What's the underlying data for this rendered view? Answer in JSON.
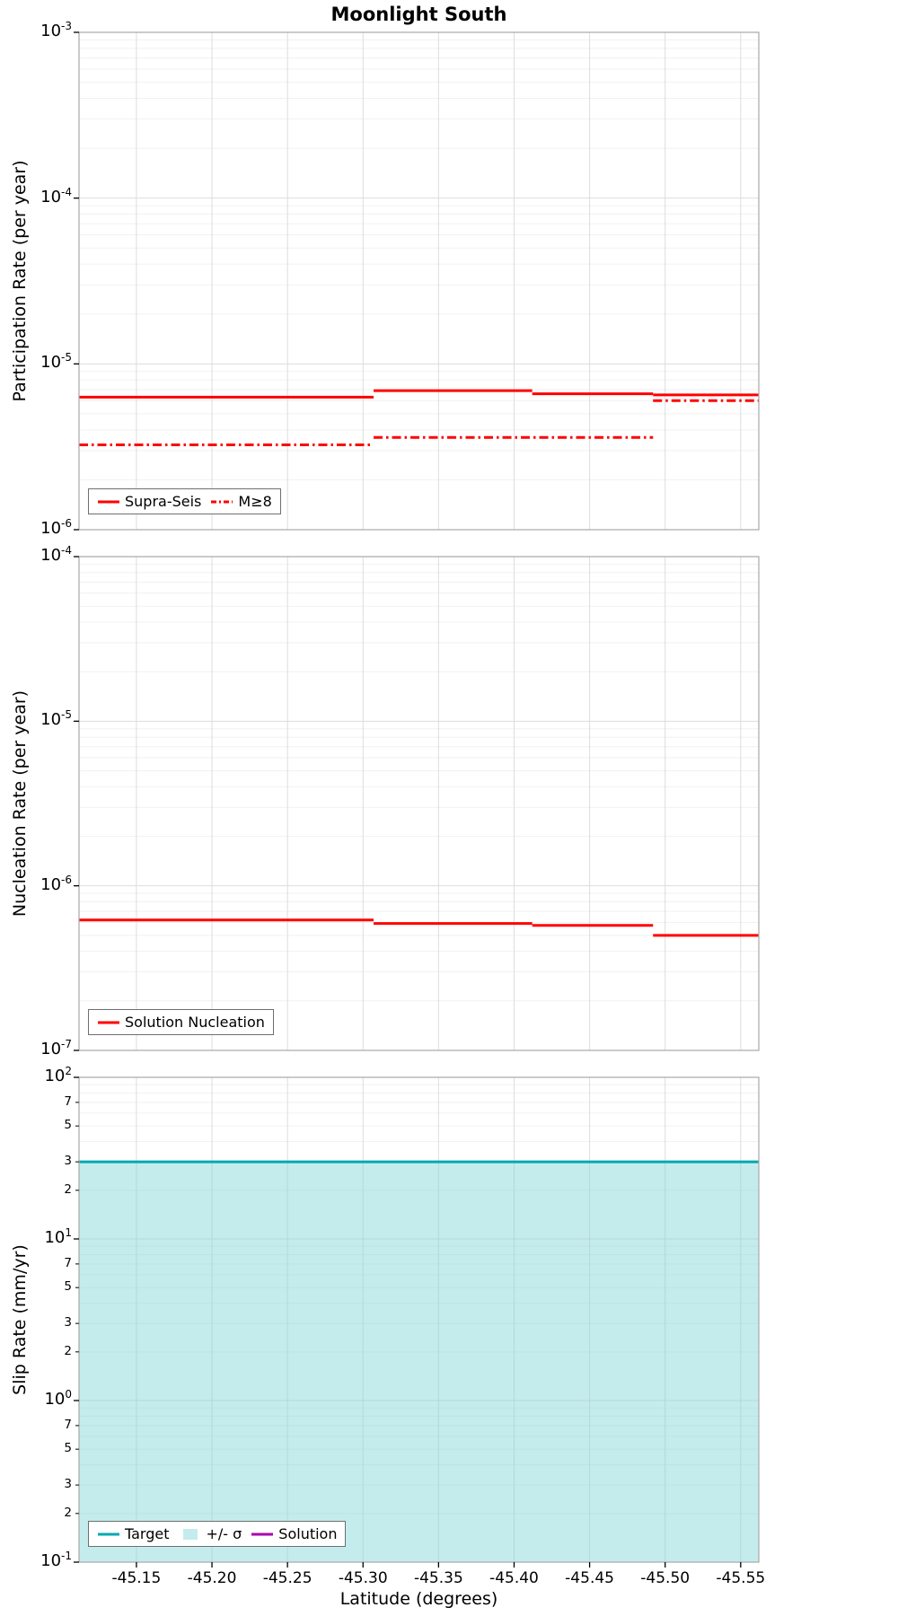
{
  "title": "Moonlight South",
  "xlabel": "Latitude (degrees)",
  "x_range": [
    -45.112,
    -45.562
  ],
  "x_tick_labels": [
    "-45.15",
    "-45.20",
    "-45.25",
    "-45.30",
    "-45.35",
    "-45.40",
    "-45.45",
    "-45.50",
    "-45.55"
  ],
  "colors": {
    "series_red": "#ff0000",
    "target_teal": "#00a8b0",
    "solution_magenta": "#aa00aa",
    "sigma_band": "#7fd4d8",
    "grid_major": "#dddddd",
    "grid_minor": "#f1f1f1",
    "panel_border": "#a8a8a8",
    "text": "#000000"
  },
  "chart_data": [
    {
      "name": "participation",
      "type": "line",
      "ylabel": "Participation Rate (per year)",
      "y_log_range": [
        -6,
        -3
      ],
      "x_reversed": true,
      "series": [
        {
          "name": "Supra-Seis",
          "style": "solid",
          "color": "series_red",
          "segments": [
            {
              "x0": -45.112,
              "x1": -45.307,
              "rate": 6.3e-06
            },
            {
              "x0": -45.307,
              "x1": -45.412,
              "rate": 6.9e-06
            },
            {
              "x0": -45.412,
              "x1": -45.492,
              "rate": 6.6e-06
            },
            {
              "x0": -45.492,
              "x1": -45.562,
              "rate": 6.5e-06
            }
          ]
        },
        {
          "name": "M≥8",
          "style": "dashdot",
          "color": "series_red",
          "segments": [
            {
              "x0": -45.112,
              "x1": -45.307,
              "rate": 3.25e-06
            },
            {
              "x0": -45.307,
              "x1": -45.492,
              "rate": 3.6e-06
            },
            {
              "x0": -45.492,
              "x1": -45.562,
              "rate": 6e-06
            }
          ]
        }
      ],
      "legend": [
        {
          "label": "Supra-Seis",
          "sample": "solid",
          "color": "series_red"
        },
        {
          "label": "M≥8",
          "sample": "dashdot",
          "color": "series_red"
        }
      ]
    },
    {
      "name": "nucleation",
      "type": "line",
      "ylabel": "Nucleation Rate (per year)",
      "y_log_range": [
        -7,
        -4
      ],
      "x_reversed": true,
      "series": [
        {
          "name": "Solution Nucleation",
          "style": "solid",
          "color": "series_red",
          "segments": [
            {
              "x0": -45.112,
              "x1": -45.307,
              "rate": 6.2e-07
            },
            {
              "x0": -45.307,
              "x1": -45.412,
              "rate": 5.9e-07
            },
            {
              "x0": -45.412,
              "x1": -45.492,
              "rate": 5.75e-07
            },
            {
              "x0": -45.492,
              "x1": -45.562,
              "rate": 5e-07
            }
          ]
        }
      ],
      "legend": [
        {
          "label": "Solution Nucleation",
          "sample": "solid",
          "color": "series_red"
        }
      ]
    },
    {
      "name": "slip-rate",
      "type": "area",
      "ylabel": "Slip Rate (mm/yr)",
      "y_log_range": [
        -1,
        2
      ],
      "x_reversed": true,
      "minor_tick_labels": [
        7,
        5,
        3,
        2
      ],
      "band": {
        "label": "+/- σ",
        "low": 0.1,
        "high": 30,
        "x0": -45.112,
        "x1": -45.562,
        "color": "sigma_band"
      },
      "series": [
        {
          "name": "Target",
          "style": "solid",
          "color": "target_teal",
          "segments": [
            {
              "x0": -45.112,
              "x1": -45.562,
              "rate": 30
            }
          ]
        }
      ],
      "legend": [
        {
          "label": "Target",
          "sample": "solid",
          "color": "target_teal"
        },
        {
          "label": "+/- σ",
          "sample": "patch",
          "color": "sigma_band"
        },
        {
          "label": "Solution",
          "sample": "solid",
          "color": "solution_magenta"
        }
      ]
    }
  ]
}
